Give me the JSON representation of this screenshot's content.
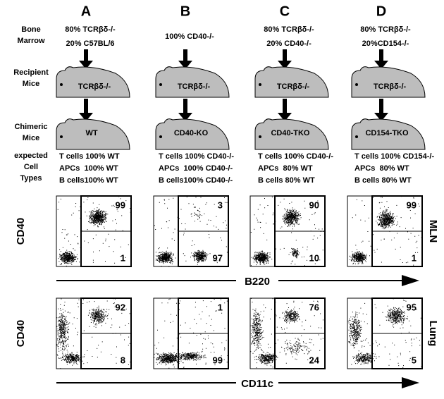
{
  "row_labels": {
    "bone_marrow": [
      "Bone",
      "Marrow"
    ],
    "recipient": [
      "Recipient",
      "Mice"
    ],
    "chimeric": [
      "Chimeric",
      "Mice"
    ],
    "expected": [
      "expected",
      "Cell",
      "Types"
    ]
  },
  "columns": [
    {
      "letter": "A",
      "bone_marrow": [
        "80% TCRβδ-/-",
        "20% C57BL/6"
      ],
      "recipient": "TCRβδ-/-",
      "chimeric": "WT",
      "expected": [
        "T cells 100% WT",
        "APCs  100% WT",
        "B cells100% WT"
      ],
      "mln": {
        "upper": "99",
        "lower": "1"
      },
      "lung": {
        "upper": "92",
        "lower": "8"
      }
    },
    {
      "letter": "B",
      "bone_marrow": [
        "100% CD40-/-"
      ],
      "recipient": "TCRβδ-/-",
      "chimeric": "CD40-KO",
      "expected": [
        "T cells 100% CD40-/-",
        "APCs  100% CD40-/-",
        "B cells100% CD40-/-"
      ],
      "mln": {
        "upper": "3",
        "lower": "97"
      },
      "lung": {
        "upper": "1",
        "lower": "99"
      }
    },
    {
      "letter": "C",
      "bone_marrow": [
        "80% TCRβδ-/-",
        "20% CD40-/-"
      ],
      "recipient": "TCRβδ-/-",
      "chimeric": "CD40-TKO",
      "expected": [
        "T cells 100% CD40-/-",
        "APCs  80% WT",
        "B cells 80% WT"
      ],
      "mln": {
        "upper": "90",
        "lower": "10"
      },
      "lung": {
        "upper": "76",
        "lower": "24"
      }
    },
    {
      "letter": "D",
      "bone_marrow": [
        "80% TCRβδ-/-",
        "20%CD154-/-"
      ],
      "recipient": "TCRβδ-/-",
      "chimeric": "CD154-TKO",
      "expected": [
        "T cells 100% CD154-/-",
        "APCs  80% WT",
        "B cells 80% WT"
      ],
      "mln": {
        "upper": "99",
        "lower": "1"
      },
      "lung": {
        "upper": "95",
        "lower": "5"
      }
    }
  ],
  "plots": {
    "y_label_mln": "CD40",
    "y_label_lung": "CD40",
    "x_label_mln": "B220",
    "x_label_lung": "CD11c",
    "row_mln": "MLN",
    "row_lung": "Lung"
  }
}
